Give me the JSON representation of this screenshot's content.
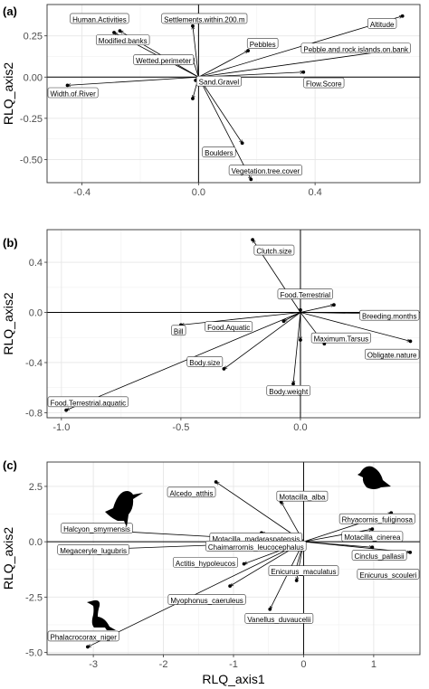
{
  "chart_data": [
    {
      "type": "scatter",
      "panel_label": "(a)",
      "xlabel": "",
      "ylabel": "RLQ_axis2",
      "xlim": [
        -0.52,
        0.76
      ],
      "ylim": [
        -0.64,
        0.44
      ],
      "xticks": [
        -0.4,
        0.0,
        0.4
      ],
      "xtick_labels": [
        "-0.4",
        "0.0",
        "0.4"
      ],
      "yticks": [
        -0.5,
        -0.25,
        0.0,
        0.25
      ],
      "ytick_labels": [
        "-0.50",
        "-0.25",
        "0.00",
        "0.25"
      ],
      "grid": true,
      "points": [
        {
          "label": "Altitude",
          "x": 0.7,
          "y": 0.37,
          "lx": 0.63,
          "ly": 0.32
        },
        {
          "label": "Settlements.within.200.m",
          "x": -0.02,
          "y": 0.31,
          "lx": 0.02,
          "ly": 0.35
        },
        {
          "label": "Human.Activities",
          "x": -0.27,
          "y": 0.28,
          "lx": -0.34,
          "ly": 0.35
        },
        {
          "label": "Modified.banks",
          "x": -0.29,
          "y": 0.27,
          "lx": -0.26,
          "ly": 0.22
        },
        {
          "label": "Pebbles",
          "x": 0.17,
          "y": 0.16,
          "lx": 0.22,
          "ly": 0.2
        },
        {
          "label": "Pebble.and.rock.islands.on.bank",
          "x": 0.65,
          "y": 0.16,
          "lx": 0.54,
          "ly": 0.17
        },
        {
          "label": "Wetted.perimeter",
          "x": -0.02,
          "y": 0.11,
          "lx": -0.12,
          "ly": 0.1
        },
        {
          "label": "Flow.Score",
          "x": 0.36,
          "y": 0.03,
          "lx": 0.43,
          "ly": -0.04
        },
        {
          "label": "Sand.Gravel",
          "x": -0.01,
          "y": -0.02,
          "lx": 0.07,
          "ly": -0.03
        },
        {
          "label": "Width.of.River",
          "x": -0.45,
          "y": -0.05,
          "lx": -0.45,
          "ly": -0.1
        },
        {
          "label": "",
          "x": -0.02,
          "y": -0.13,
          "lx": null,
          "ly": null
        },
        {
          "label": "Boulders",
          "x": 0.15,
          "y": -0.4,
          "lx": 0.07,
          "ly": -0.46
        },
        {
          "label": "Vegetation.tree.cover",
          "x": 0.18,
          "y": -0.62,
          "lx": 0.23,
          "ly": -0.57
        }
      ]
    },
    {
      "type": "scatter",
      "panel_label": "(b)",
      "xlabel": "",
      "ylabel": "RLQ_axis2",
      "xlim": [
        -1.06,
        0.5
      ],
      "ylim": [
        -0.84,
        0.66
      ],
      "xticks": [
        -1.0,
        -0.5,
        0.0
      ],
      "xtick_labels": [
        "-1.0",
        "-0.5",
        "0.0"
      ],
      "yticks": [
        -0.8,
        -0.4,
        0.0,
        0.4
      ],
      "ytick_labels": [
        "-0.8",
        "-0.4",
        "0.0",
        "0.4"
      ],
      "grid": true,
      "points": [
        {
          "label": "Clutch.size",
          "x": -0.2,
          "y": 0.58,
          "lx": -0.11,
          "ly": 0.49
        },
        {
          "label": "Food.Terrestrial",
          "x": 0.0,
          "y": 0.02,
          "lx": 0.02,
          "ly": 0.14
        },
        {
          "label": "",
          "x": 0.14,
          "y": 0.06,
          "lx": null,
          "ly": null
        },
        {
          "label": "Breeding.months",
          "x": 0.34,
          "y": -0.01,
          "lx": 0.39,
          "ly": -0.03
        },
        {
          "label": "Food.Aquatic",
          "x": -0.07,
          "y": -0.07,
          "lx": -0.3,
          "ly": -0.12
        },
        {
          "label": "Bill",
          "x": -0.5,
          "y": -0.1,
          "lx": -0.51,
          "ly": -0.15
        },
        {
          "label": "Maximum.Tarsus",
          "x": 0.1,
          "y": -0.25,
          "lx": 0.17,
          "ly": -0.21
        },
        {
          "label": "",
          "x": 0.0,
          "y": -0.22,
          "lx": null,
          "ly": null
        },
        {
          "label": "Obligate.nature",
          "x": 0.46,
          "y": -0.23,
          "lx": 0.43,
          "ly": -0.34
        },
        {
          "label": "Body.size",
          "x": -0.32,
          "y": -0.45,
          "lx": -0.4,
          "ly": -0.4
        },
        {
          "label": "Body.weight",
          "x": -0.03,
          "y": -0.57,
          "lx": -0.05,
          "ly": -0.63
        },
        {
          "label": "Food.Terrestrial.aquatic",
          "x": -0.98,
          "y": -0.78,
          "lx": -0.9,
          "ly": -0.72
        }
      ]
    },
    {
      "type": "scatter",
      "panel_label": "(c)",
      "xlabel": "RLQ_axis1",
      "ylabel": "RLQ_axis2",
      "xlim": [
        -3.66,
        1.66
      ],
      "ylim": [
        -5.1,
        3.6
      ],
      "xticks": [
        -3,
        -2,
        -1,
        0,
        1
      ],
      "xtick_labels": [
        "-3",
        "-2",
        "-1",
        "0",
        "1"
      ],
      "yticks": [
        -5.0,
        -2.5,
        0.0,
        2.5
      ],
      "ytick_labels": [
        "-5.0",
        "-2.5",
        "0.0",
        "2.5"
      ],
      "grid": true,
      "points": [
        {
          "label": "Alcedo_atthis",
          "x": -1.25,
          "y": 2.7,
          "lx": -1.6,
          "ly": 2.2
        },
        {
          "label": "Motacilla_alba",
          "x": -0.32,
          "y": 1.8,
          "lx": -0.02,
          "ly": 2.02
        },
        {
          "label": "Rhyacornis_fuliginosa",
          "x": 1.25,
          "y": 1.3,
          "lx": 1.05,
          "ly": 1.0
        },
        {
          "label": "Motacilla_madaraspatensis",
          "x": -0.6,
          "y": 0.4,
          "lx": -0.68,
          "ly": 0.13
        },
        {
          "label": "Motacilla_cinerea",
          "x": 0.98,
          "y": 0.57,
          "lx": 0.98,
          "ly": 0.2
        },
        {
          "label": "Chaimarrornis_leucocephalus",
          "x": -0.14,
          "y": 0.02,
          "lx": -0.68,
          "ly": -0.23
        },
        {
          "label": "Halcyon_smyrnensis",
          "x": -3.38,
          "y": 0.6,
          "lx": -2.95,
          "ly": 0.57
        },
        {
          "label": "Megaceryle_lugubris",
          "x": -3.42,
          "y": -0.4,
          "lx": -3.0,
          "ly": -0.4
        },
        {
          "label": "Cinclus_pallasii",
          "x": 0.98,
          "y": -0.25,
          "lx": 1.08,
          "ly": -0.65
        },
        {
          "label": "Actitis_hypoleucos",
          "x": -0.85,
          "y": -1.0,
          "lx": -1.4,
          "ly": -0.97
        },
        {
          "label": "Enicurus_scouleri",
          "x": 1.52,
          "y": -0.48,
          "lx": 1.3,
          "ly": -1.5
        },
        {
          "label": "Enicurus_maculatus",
          "x": -0.12,
          "y": -1.35,
          "lx": 0.0,
          "ly": -1.35
        },
        {
          "label": "Myophonus_caeruleus",
          "x": -1.05,
          "y": -2.0,
          "lx": -1.38,
          "ly": -2.65
        },
        {
          "label": "",
          "x": -0.1,
          "y": -1.75,
          "lx": null,
          "ly": null
        },
        {
          "label": "Vanellus_duvaucelii",
          "x": -0.48,
          "y": -3.05,
          "lx": -0.35,
          "ly": -3.5
        },
        {
          "label": "Phalacrocorax_niger",
          "x": -3.08,
          "y": -4.75,
          "lx": -3.5,
          "ly": -4.3
        }
      ],
      "silhouettes": [
        "kingfisher-silhouette",
        "cormorant-silhouette",
        "songbird-silhouette"
      ]
    }
  ]
}
